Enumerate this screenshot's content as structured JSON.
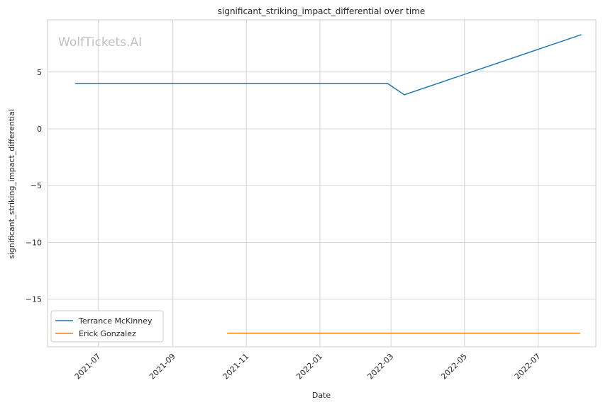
{
  "watermark": "WolfTickets.AI",
  "chart_data": {
    "type": "line",
    "title": "significant_striking_impact_differential over time",
    "xlabel": "Date",
    "ylabel": "significant_striking_impact_differential",
    "x_type": "date",
    "xlim": [
      "2021-05-20",
      "2022-08-18"
    ],
    "ylim": [
      -19.2,
      9.6
    ],
    "yticks": [
      5,
      0,
      -5,
      -10,
      -15
    ],
    "ytick_labels": [
      "5",
      "0",
      "−5",
      "−10",
      "−15"
    ],
    "xticks": [
      "2021-07-01",
      "2021-09-01",
      "2021-11-01",
      "2022-01-01",
      "2022-03-01",
      "2022-05-01",
      "2022-07-01"
    ],
    "xtick_labels": [
      "2021-07",
      "2021-09",
      "2021-11",
      "2022-01",
      "2022-03",
      "2022-05",
      "2022-07"
    ],
    "grid": true,
    "legend_position": "lower-left",
    "series": [
      {
        "name": "Terrance McKinney",
        "color": "#1f77b4",
        "points": [
          {
            "x": "2021-06-12",
            "y": 4.0
          },
          {
            "x": "2022-02-26",
            "y": 4.0
          },
          {
            "x": "2022-03-12",
            "y": 3.0
          },
          {
            "x": "2022-08-06",
            "y": 8.3
          }
        ]
      },
      {
        "name": "Erick Gonzalez",
        "color": "#ff7f0e",
        "points": [
          {
            "x": "2021-10-16",
            "y": -18.0
          },
          {
            "x": "2022-08-05",
            "y": -18.0
          }
        ]
      }
    ]
  }
}
